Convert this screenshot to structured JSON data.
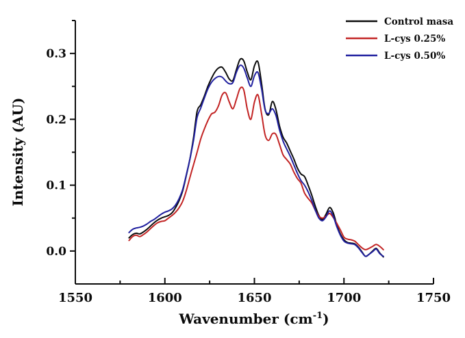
{
  "figure": {
    "background": "#ffffff"
  },
  "chart_data": {
    "type": "line",
    "title": "",
    "ylabel": "Intensity (AU)",
    "xlabel": {
      "prefix": "Wavenumber (cm",
      "superscript": "-1",
      "suffix": ")"
    },
    "xlim": [
      1550,
      1750
    ],
    "ylim": [
      -0.05,
      0.35
    ],
    "grid": false,
    "legend_position": "top-right",
    "x_major_ticks": [
      1550,
      1600,
      1650,
      1700,
      1750
    ],
    "x_major_tick_labels": [
      "1550",
      "1600",
      "1650",
      "1700",
      "1750"
    ],
    "x_minor_ticks": [
      1575,
      1625,
      1675,
      1725
    ],
    "y_major_ticks": [
      0.0,
      0.1,
      0.2,
      0.3
    ],
    "y_major_tick_labels": [
      "0.0",
      "0.1",
      "0.2",
      "0.3"
    ],
    "y_minor_ticks": [
      0.05,
      0.15,
      0.25,
      0.35
    ],
    "x": [
      1580,
      1582,
      1584,
      1586,
      1588,
      1590,
      1592,
      1594,
      1596,
      1598,
      1600,
      1602,
      1604,
      1606,
      1608,
      1610,
      1612,
      1614,
      1616,
      1618,
      1620,
      1622,
      1624,
      1626,
      1628,
      1630,
      1632,
      1634,
      1636,
      1638,
      1640,
      1642,
      1644,
      1646,
      1648,
      1650,
      1652,
      1654,
      1656,
      1658,
      1660,
      1662,
      1664,
      1666,
      1668,
      1670,
      1672,
      1674,
      1676,
      1678,
      1680,
      1682,
      1684,
      1686,
      1688,
      1690,
      1692,
      1694,
      1696,
      1698,
      1700,
      1702,
      1704,
      1706,
      1708,
      1710,
      1712,
      1714,
      1716,
      1718,
      1720,
      1722
    ],
    "series": [
      {
        "name": "Control masa",
        "color": "#0b0b0b",
        "values": [
          0.02,
          0.025,
          0.027,
          0.026,
          0.029,
          0.033,
          0.038,
          0.043,
          0.047,
          0.05,
          0.052,
          0.054,
          0.058,
          0.066,
          0.077,
          0.092,
          0.115,
          0.14,
          0.172,
          0.212,
          0.222,
          0.235,
          0.25,
          0.262,
          0.272,
          0.278,
          0.279,
          0.271,
          0.261,
          0.259,
          0.276,
          0.291,
          0.289,
          0.272,
          0.26,
          0.281,
          0.287,
          0.254,
          0.215,
          0.207,
          0.227,
          0.215,
          0.19,
          0.173,
          0.164,
          0.152,
          0.14,
          0.126,
          0.117,
          0.113,
          0.1,
          0.085,
          0.068,
          0.054,
          0.048,
          0.056,
          0.066,
          0.058,
          0.04,
          0.026,
          0.017,
          0.013,
          0.012,
          0.011,
          0.006,
          -0.001,
          -0.008,
          -0.005,
          0.0,
          0.004,
          -0.003,
          -0.009
        ]
      },
      {
        "name": "L-cys 0.25%",
        "color": "#c22323",
        "values": [
          0.016,
          0.022,
          0.024,
          0.022,
          0.025,
          0.029,
          0.034,
          0.039,
          0.043,
          0.045,
          0.046,
          0.05,
          0.054,
          0.059,
          0.066,
          0.076,
          0.092,
          0.112,
          0.131,
          0.15,
          0.17,
          0.185,
          0.198,
          0.208,
          0.211,
          0.221,
          0.237,
          0.24,
          0.226,
          0.216,
          0.231,
          0.247,
          0.245,
          0.216,
          0.2,
          0.226,
          0.237,
          0.208,
          0.176,
          0.168,
          0.178,
          0.177,
          0.162,
          0.146,
          0.139,
          0.132,
          0.12,
          0.11,
          0.103,
          0.088,
          0.08,
          0.073,
          0.062,
          0.053,
          0.05,
          0.053,
          0.057,
          0.051,
          0.042,
          0.032,
          0.021,
          0.018,
          0.017,
          0.015,
          0.01,
          0.005,
          0.002,
          0.004,
          0.007,
          0.01,
          0.007,
          0.002
        ]
      },
      {
        "name": "L-cys 0.50%",
        "color": "#20209f",
        "values": [
          0.028,
          0.033,
          0.035,
          0.036,
          0.038,
          0.041,
          0.045,
          0.048,
          0.052,
          0.056,
          0.059,
          0.061,
          0.064,
          0.07,
          0.08,
          0.094,
          0.116,
          0.14,
          0.168,
          0.203,
          0.217,
          0.232,
          0.246,
          0.256,
          0.262,
          0.265,
          0.264,
          0.258,
          0.254,
          0.256,
          0.272,
          0.282,
          0.278,
          0.263,
          0.25,
          0.266,
          0.271,
          0.246,
          0.214,
          0.209,
          0.216,
          0.206,
          0.184,
          0.167,
          0.155,
          0.144,
          0.131,
          0.118,
          0.107,
          0.1,
          0.09,
          0.077,
          0.062,
          0.05,
          0.046,
          0.052,
          0.061,
          0.053,
          0.037,
          0.024,
          0.015,
          0.012,
          0.011,
          0.01,
          0.005,
          -0.002,
          -0.008,
          -0.005,
          -0.001,
          0.003,
          -0.004,
          -0.008
        ]
      }
    ],
    "legend": [
      {
        "label": "Control masa",
        "color": "#0b0b0b"
      },
      {
        "label": "L-cys 0.25%",
        "color": "#c22323"
      },
      {
        "label": "L-cys 0.50%",
        "color": "#20209f"
      }
    ]
  }
}
